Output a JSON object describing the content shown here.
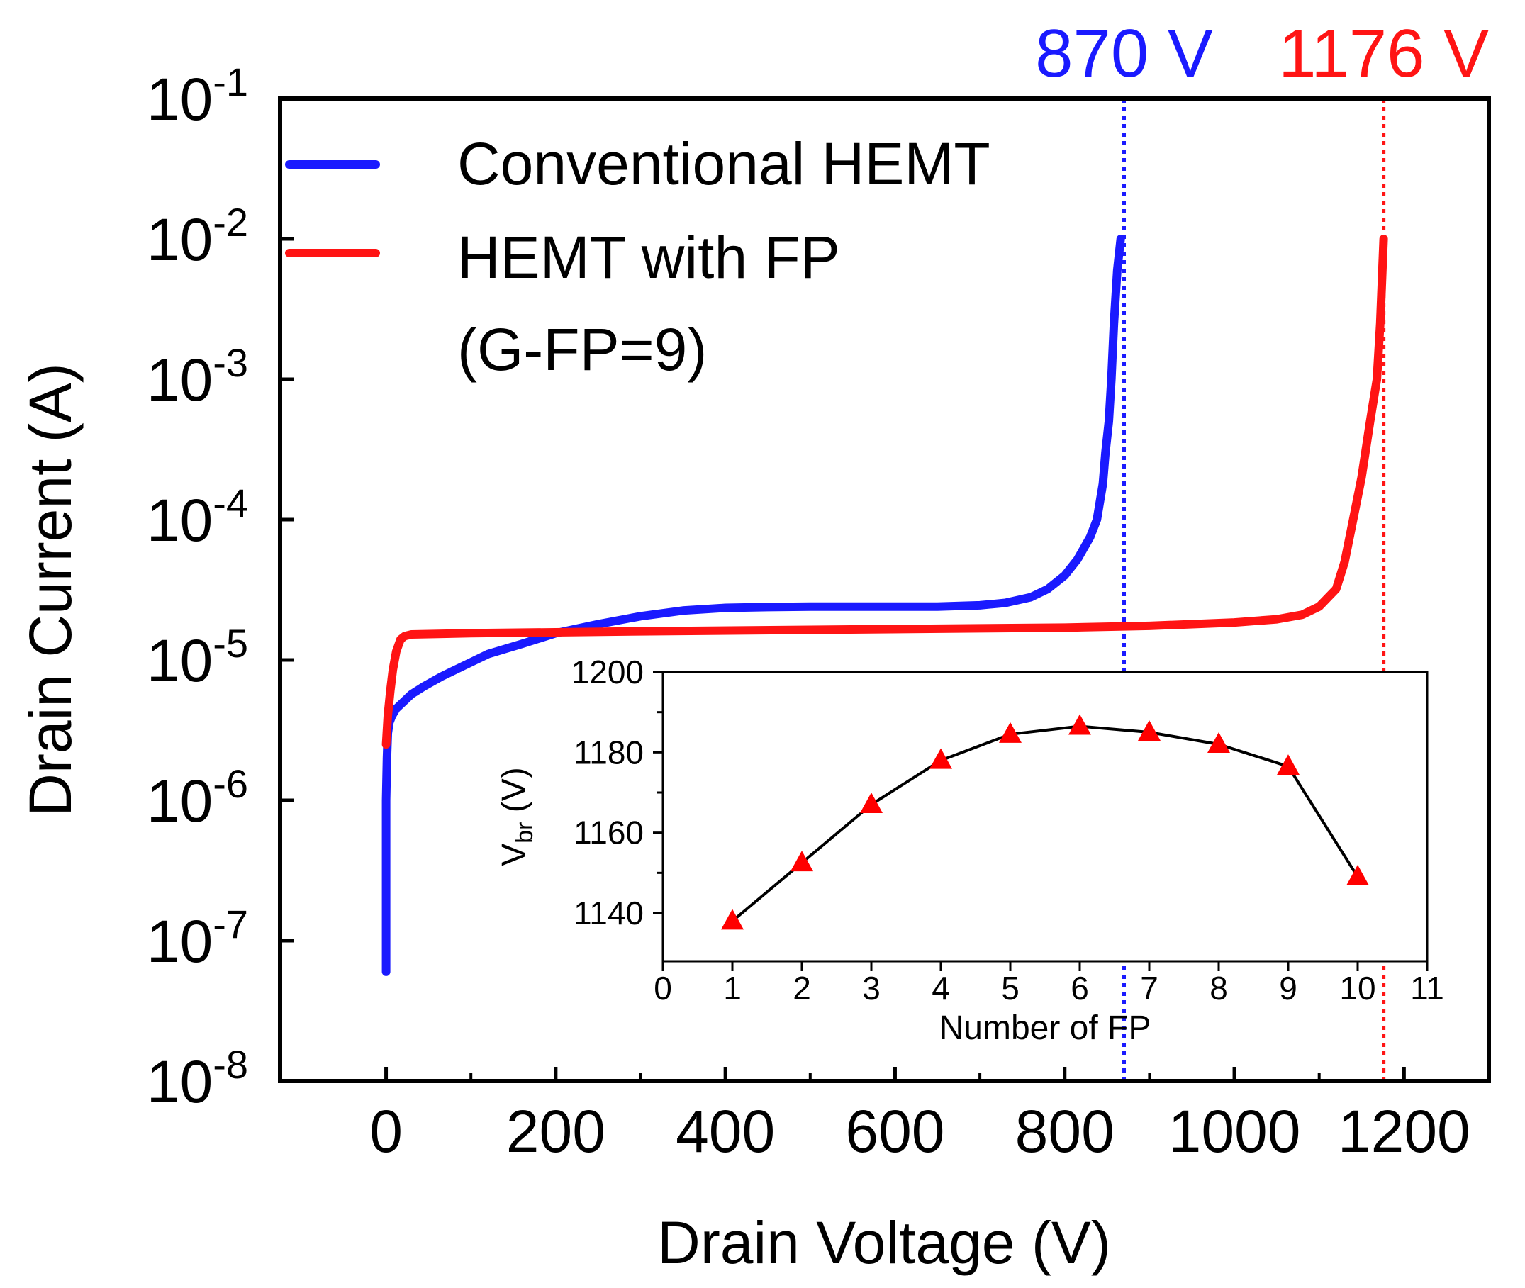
{
  "chart_data": [
    {
      "type": "line",
      "yscale": "log",
      "title": "",
      "xlabel": "Drain Voltage (V)",
      "ylabel": "Drain Current (A)",
      "xlim": [
        -125,
        1300
      ],
      "ylim_exp": [
        -8,
        -1
      ],
      "xticks": [
        0,
        200,
        400,
        600,
        800,
        1000,
        1200
      ],
      "xtick_labels": [
        "0",
        "200",
        "400",
        "600",
        "800",
        "1000",
        "1200"
      ],
      "xminor": [
        100,
        300,
        500,
        700,
        900,
        1100
      ],
      "yticks_exp": [
        -8,
        -7,
        -6,
        -5,
        -4,
        -3,
        -2,
        -1
      ],
      "ytick_base": "10",
      "ytick_exps": [
        "-8",
        "-7",
        "-6",
        "-5",
        "-4",
        "-3",
        "-2",
        "-1"
      ],
      "legend": {
        "position": "top-left",
        "entries": [
          "Conventional HEMT",
          "HEMT with FP",
          "(G-FP=9)"
        ]
      },
      "series": [
        {
          "name": "Conventional HEMT",
          "color": "#1a1aff",
          "x": [
            0,
            0,
            0,
            1,
            2,
            4,
            7,
            12,
            20,
            30,
            45,
            65,
            90,
            120,
            160,
            200,
            250,
            300,
            350,
            400,
            450,
            500,
            550,
            600,
            650,
            700,
            730,
            760,
            780,
            800,
            815,
            830,
            838,
            845,
            848,
            852,
            855,
            858,
            862,
            866
          ],
          "y": [
            6e-08,
            2e-07,
            1e-06,
            2e-06,
            3e-06,
            3.6e-06,
            4e-06,
            4.5e-06,
            5e-06,
            5.7e-06,
            6.5e-06,
            7.6e-06,
            9e-06,
            1.1e-05,
            1.3e-05,
            1.55e-05,
            1.8e-05,
            2.05e-05,
            2.25e-05,
            2.35e-05,
            2.38e-05,
            2.4e-05,
            2.4e-05,
            2.4e-05,
            2.4e-05,
            2.45e-05,
            2.55e-05,
            2.8e-05,
            3.2e-05,
            4e-05,
            5.2e-05,
            7.5e-05,
            0.0001,
            0.00018,
            0.0003,
            0.0005,
            0.001,
            0.0025,
            0.006,
            0.01
          ]
        },
        {
          "name": "HEMT with FP",
          "color": "#ff1414",
          "x": [
            0,
            2,
            5,
            8,
            12,
            17,
            22,
            30,
            100,
            300,
            500,
            700,
            800,
            900,
            1000,
            1050,
            1080,
            1100,
            1120,
            1130,
            1140,
            1150,
            1160,
            1168,
            1172,
            1174,
            1176
          ],
          "y": [
            2.5e-06,
            4e-06,
            6e-06,
            8.5e-06,
            1.15e-05,
            1.4e-05,
            1.48e-05,
            1.52e-05,
            1.55e-05,
            1.6e-05,
            1.64e-05,
            1.68e-05,
            1.7e-05,
            1.75e-05,
            1.85e-05,
            1.95e-05,
            2.1e-05,
            2.4e-05,
            3.2e-05,
            5e-05,
            0.0001,
            0.0002,
            0.0005,
            0.001,
            0.0025,
            0.005,
            0.01
          ]
        }
      ],
      "annotations": [
        {
          "text": "870 V",
          "x": 870,
          "color": "#1a1aff",
          "style": "dotted-vertical"
        },
        {
          "text": "1176 V",
          "x": 1176,
          "color": "#ff1414",
          "style": "dotted-vertical"
        }
      ]
    },
    {
      "type": "scatter",
      "inset": true,
      "title": "",
      "xlabel": "Number of FP",
      "ylabel_main": "V",
      "ylabel_sub": "br",
      "ylabel_unit": " (V)",
      "xlim": [
        0,
        11
      ],
      "ylim": [
        1128,
        1200
      ],
      "xticks": [
        0,
        1,
        2,
        3,
        4,
        5,
        6,
        7,
        8,
        9,
        10,
        11
      ],
      "xtick_labels": [
        "0",
        "1",
        "2",
        "3",
        "4",
        "5",
        "6",
        "7",
        "8",
        "9",
        "10",
        "11"
      ],
      "yticks": [
        1140,
        1160,
        1180,
        1200
      ],
      "ytick_labels": [
        "1140",
        "1160",
        "1180",
        "1200"
      ],
      "marker": "triangle",
      "marker_color": "#ff0000",
      "line_color": "#000000",
      "x": [
        1,
        2,
        3,
        4,
        5,
        6,
        7,
        8,
        9,
        10
      ],
      "y": [
        1138,
        1152.5,
        1167,
        1178,
        1184.5,
        1186.5,
        1185,
        1182,
        1176.5,
        1149
      ]
    }
  ]
}
